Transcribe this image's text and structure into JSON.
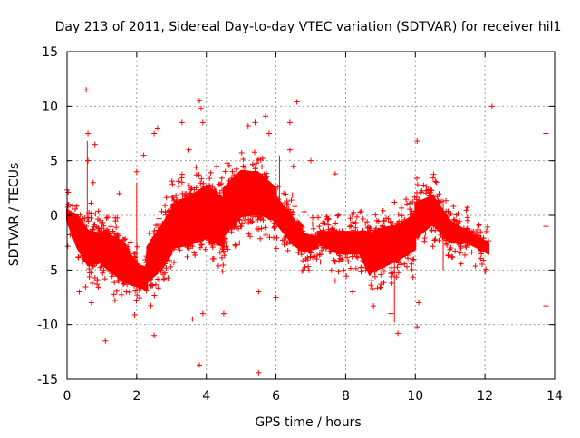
{
  "chart_data": {
    "type": "scatter",
    "title": "Day 213 of 2011, Sidereal Day-to-day VTEC variation (SDTVAR) for receiver hil1",
    "xlabel": "GPS time / hours",
    "ylabel": "SDTVAR / TECUs",
    "xlim": [
      0,
      14
    ],
    "ylim": [
      -15,
      15
    ],
    "xticks": [
      "0",
      "2",
      "4",
      "6",
      "8",
      "10",
      "12",
      "14"
    ],
    "yticks": [
      "-15",
      "-10",
      "-5",
      "0",
      "5",
      "10",
      "15"
    ],
    "grid": true,
    "marker": "+",
    "series_color": "#ff0000",
    "band_segments": [
      {
        "x": [
          0.0,
          0.3,
          0.6,
          1.0
        ],
        "center": [
          0,
          -1.5,
          -3,
          -3
        ],
        "halfwidth": [
          0.5,
          1.5,
          1.6,
          1.3
        ]
      },
      {
        "x": [
          1.0,
          1.6,
          2.0,
          2.3
        ],
        "center": [
          -3,
          -4.2,
          -5.5,
          -5.8
        ],
        "halfwidth": [
          1.5,
          1.8,
          1.0,
          1.0
        ]
      },
      {
        "x": [
          2.3,
          2.7,
          3.0
        ],
        "center": [
          -4.5,
          -3,
          -1.5
        ],
        "halfwidth": [
          1.6,
          2.0,
          2.0
        ]
      },
      {
        "x": [
          3.0,
          3.5,
          4.0,
          4.5
        ],
        "center": [
          -1.0,
          -0.5,
          0.3,
          -0.7
        ],
        "halfwidth": [
          2.0,
          2.2,
          2.4,
          2.2
        ]
      },
      {
        "x": [
          4.5,
          5.0,
          5.5,
          6.0
        ],
        "center": [
          0.3,
          2.0,
          2.0,
          1.0
        ],
        "halfwidth": [
          2.2,
          2.1,
          1.9,
          1.5
        ]
      },
      {
        "x": [
          6.0,
          6.5,
          6.8,
          7.2
        ],
        "center": [
          0.5,
          -1.5,
          -2.5,
          -2.5
        ],
        "halfwidth": [
          1.2,
          1.2,
          0.8,
          0.5
        ]
      },
      {
        "x": [
          7.2,
          7.8,
          8.4,
          8.7
        ],
        "center": [
          -2.0,
          -2.5,
          -2.5,
          -3.5
        ],
        "halfwidth": [
          0.5,
          1.0,
          1.0,
          2.0
        ]
      },
      {
        "x": [
          8.7,
          9.0,
          9.5,
          10.0
        ],
        "center": [
          -3.5,
          -3.0,
          -2.5,
          -1.5
        ],
        "halfwidth": [
          1.8,
          1.8,
          1.6,
          1.6
        ]
      },
      {
        "x": [
          10.0,
          10.5,
          11.0,
          11.5,
          12.1
        ],
        "center": [
          -0.5,
          0.5,
          -1.5,
          -2.0,
          -3.0
        ],
        "halfwidth": [
          1.6,
          1.3,
          1.0,
          0.5,
          0.5
        ]
      }
    ],
    "outliers": [
      {
        "x": 0.55,
        "y": 11.5
      },
      {
        "x": 0.6,
        "y": 7.5
      },
      {
        "x": 0.6,
        "y": 5.0
      },
      {
        "x": 0.8,
        "y": 6.5
      },
      {
        "x": 0.75,
        "y": 3.0
      },
      {
        "x": 1.1,
        "y": -11.5
      },
      {
        "x": 0.35,
        "y": -7.0
      },
      {
        "x": 0.7,
        "y": -8.0
      },
      {
        "x": 1.5,
        "y": 2.0
      },
      {
        "x": 1.7,
        "y": -7.0
      },
      {
        "x": 2.2,
        "y": 5.5
      },
      {
        "x": 2.5,
        "y": 7.5
      },
      {
        "x": 2.6,
        "y": 8.0
      },
      {
        "x": 2.5,
        "y": -11.0
      },
      {
        "x": 3.3,
        "y": 8.5
      },
      {
        "x": 3.5,
        "y": 6.0
      },
      {
        "x": 3.6,
        "y": -9.5
      },
      {
        "x": 3.8,
        "y": 10.5
      },
      {
        "x": 3.85,
        "y": 9.8
      },
      {
        "x": 3.9,
        "y": 8.5
      },
      {
        "x": 3.8,
        "y": -13.7
      },
      {
        "x": 3.9,
        "y": -9.0
      },
      {
        "x": 4.5,
        "y": -9.0
      },
      {
        "x": 5.2,
        "y": 8.2
      },
      {
        "x": 5.4,
        "y": 8.5
      },
      {
        "x": 5.7,
        "y": 9.1
      },
      {
        "x": 5.8,
        "y": 7.5
      },
      {
        "x": 5.5,
        "y": -14.4
      },
      {
        "x": 5.5,
        "y": -7.0
      },
      {
        "x": 6.0,
        "y": -7.5
      },
      {
        "x": 6.4,
        "y": 8.5
      },
      {
        "x": 6.6,
        "y": 10.4
      },
      {
        "x": 7.7,
        "y": 3.8
      },
      {
        "x": 7.7,
        "y": -6.0
      },
      {
        "x": 8.2,
        "y": -7.0
      },
      {
        "x": 9.5,
        "y": -10.8
      },
      {
        "x": 10.05,
        "y": 6.8
      },
      {
        "x": 10.05,
        "y": -10.2
      },
      {
        "x": 10.1,
        "y": -8.0
      },
      {
        "x": 12.2,
        "y": 10.0
      },
      {
        "x": 13.75,
        "y": 7.5
      },
      {
        "x": 13.75,
        "y": -1.0
      },
      {
        "x": 13.75,
        "y": -8.3
      },
      {
        "x": 9.3,
        "y": -9.0
      },
      {
        "x": 8.8,
        "y": -8.3
      },
      {
        "x": 6.4,
        "y": 6.0
      },
      {
        "x": 6.5,
        "y": 4.5
      },
      {
        "x": 7.0,
        "y": 5.0
      },
      {
        "x": 4.3,
        "y": 4.5
      },
      {
        "x": 2.0,
        "y": 4.0
      }
    ]
  }
}
